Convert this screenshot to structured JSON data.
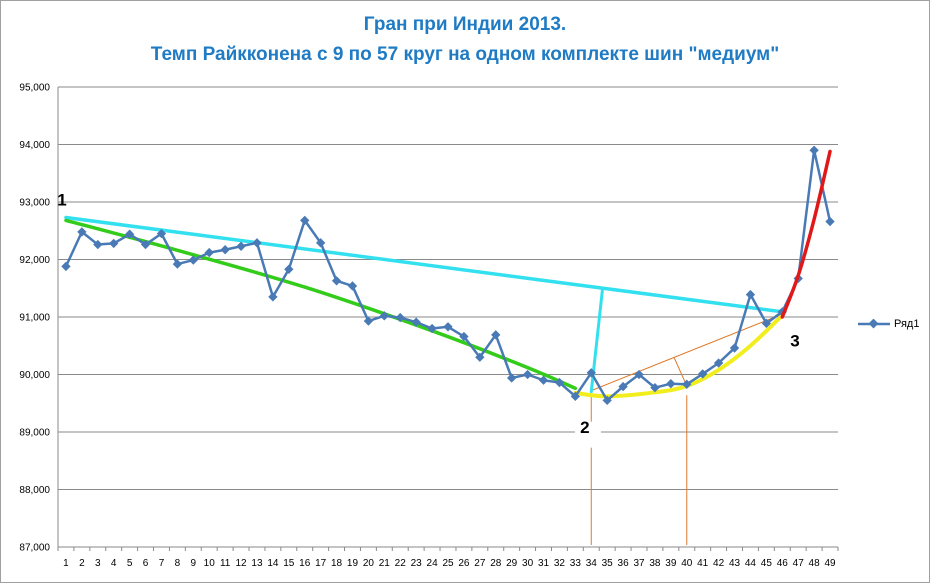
{
  "chart_data": {
    "type": "line",
    "title": "Гран при Индии 2013.",
    "subtitle": "Темп Райкконена с 9 по 57 круг на одном комплекте шин \"медиум\"",
    "xlabel": "",
    "ylabel": "",
    "ylim": [
      87000,
      95000
    ],
    "ytick_labels": [
      "87,000",
      "88,000",
      "89,000",
      "90,000",
      "91,000",
      "92,000",
      "93,000",
      "94,000",
      "95,000"
    ],
    "yticks": [
      87000,
      88000,
      89000,
      90000,
      91000,
      92000,
      93000,
      94000,
      95000
    ],
    "categories": [
      "1",
      "2",
      "3",
      "4",
      "5",
      "6",
      "7",
      "8",
      "9",
      "10",
      "11",
      "12",
      "13",
      "14",
      "15",
      "16",
      "17",
      "18",
      "19",
      "20",
      "21",
      "22",
      "23",
      "24",
      "25",
      "26",
      "27",
      "28",
      "29",
      "30",
      "31",
      "32",
      "33",
      "34",
      "35",
      "36",
      "37",
      "38",
      "39",
      "40",
      "41",
      "42",
      "43",
      "44",
      "45",
      "46",
      "47",
      "48",
      "49"
    ],
    "grid": "horizontal",
    "legend_position": "right",
    "series": [
      {
        "name": "Ряд1",
        "color": "#4a7ab5",
        "values": [
          91880,
          92480,
          92260,
          92280,
          92440,
          92260,
          92450,
          91920,
          91990,
          92120,
          92170,
          92230,
          92290,
          91350,
          91830,
          92680,
          92290,
          91630,
          91540,
          90930,
          91020,
          90990,
          90910,
          90800,
          90830,
          90660,
          90300,
          90690,
          89940,
          90000,
          89900,
          89860,
          89620,
          90030,
          89550,
          89790,
          90000,
          89770,
          89840,
          89830,
          90010,
          90200,
          90460,
          91390,
          90890,
          91090,
          91670,
          93900,
          92660
        ]
      }
    ],
    "annotations": {
      "point_labels": [
        "1",
        "2",
        "3"
      ],
      "cyan_line": {
        "color": "#33e0ef",
        "from": [
          1,
          92730
        ],
        "to": [
          46,
          91090
        ]
      },
      "cyan_drop": {
        "color": "#33e0ef",
        "from": [
          34.7,
          91470
        ],
        "to": [
          34.0,
          89700
        ]
      },
      "green_trend": {
        "color": "#33cc1a",
        "points": [
          [
            1,
            92680
          ],
          [
            8,
            92160
          ],
          [
            16,
            91520
          ],
          [
            24,
            90760
          ],
          [
            30,
            90120
          ],
          [
            33,
            89760
          ]
        ]
      },
      "yellow_curve": {
        "color": "#f2ee1e",
        "points": [
          [
            33,
            89680
          ],
          [
            35,
            89620
          ],
          [
            38,
            89690
          ],
          [
            40,
            89800
          ],
          [
            42,
            90080
          ],
          [
            44,
            90500
          ],
          [
            46,
            91030
          ]
        ]
      },
      "red_curve": {
        "color": "#e01818",
        "points": [
          [
            46,
            91000
          ],
          [
            47,
            91720
          ],
          [
            48,
            92700
          ],
          [
            49,
            93880
          ]
        ]
      },
      "orange_color": "#e07a2a",
      "orange_vlines": [
        34,
        40
      ],
      "orange_chord": {
        "from": [
          34,
          89720
        ],
        "to": [
          46,
          91050
        ]
      },
      "orange_perp": {
        "from": [
          40,
          89800
        ],
        "to": [
          39.2,
          90300
        ]
      }
    }
  }
}
